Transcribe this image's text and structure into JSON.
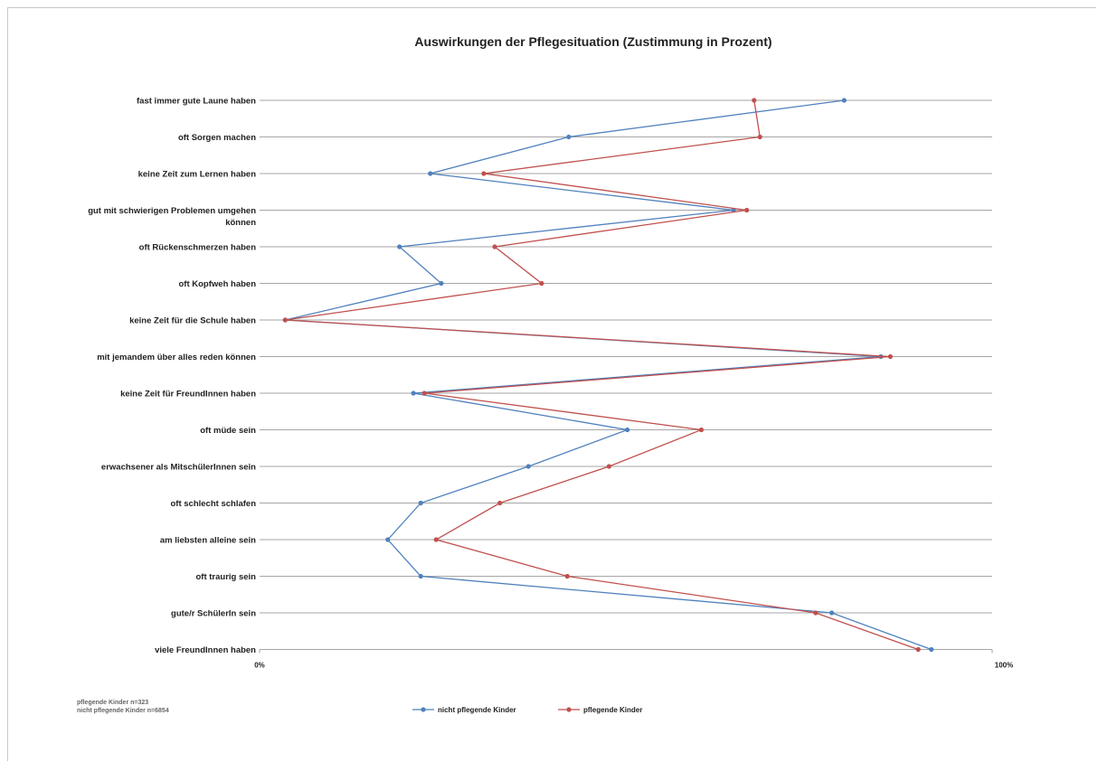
{
  "chart_data": {
    "type": "line",
    "title": "Auswirkungen der Pflegesituation (Zustimmung in Prozent)",
    "orientation": "horizontal",
    "categories": [
      "fast immer gute Laune haben",
      "oft Sorgen machen",
      "keine Zeit zum Lernen haben",
      "gut mit schwierigen Problemen umgehen können",
      "oft Rückenschmerzen haben",
      "oft Kopfweh haben",
      "keine Zeit für die Schule haben",
      "mit jemandem über alles reden können",
      "keine Zeit für FreundInnen haben",
      "oft müde sein",
      "erwachsener als MitschülerInnen sein",
      "oft schlecht schlafen",
      "am liebsten alleine sein",
      "oft traurig sein",
      "gute/r SchülerIn sein",
      "viele FreundInnen haben"
    ],
    "category_label_lines": [
      [
        "fast immer gute Laune haben"
      ],
      [
        "oft Sorgen machen"
      ],
      [
        "keine Zeit zum Lernen haben"
      ],
      [
        "gut mit schwierigen Problemen umgehen",
        "können"
      ],
      [
        "oft Rückenschmerzen haben"
      ],
      [
        "oft Kopfweh haben"
      ],
      [
        "keine Zeit für die Schule haben"
      ],
      [
        "mit jemandem über alles reden können"
      ],
      [
        "keine Zeit für FreundInnen haben"
      ],
      [
        "oft müde sein"
      ],
      [
        "erwachsener als MitschülerInnen sein"
      ],
      [
        "oft schlecht schlafen"
      ],
      [
        "am liebsten alleine sein"
      ],
      [
        "oft traurig sein"
      ],
      [
        "gute/r SchülerIn sein"
      ],
      [
        "viele FreundInnen haben"
      ]
    ],
    "series": [
      {
        "name": "nicht pflegende Kinder",
        "color": "#4f81bd",
        "values": [
          79.8,
          42.2,
          23.3,
          64.7,
          19.1,
          24.8,
          3.5,
          84.8,
          21.0,
          50.2,
          36.7,
          22.0,
          17.5,
          22.0,
          78.1,
          91.7
        ]
      },
      {
        "name": "pflegende Kinder",
        "color": "#c0504d",
        "values": [
          67.5,
          68.3,
          30.6,
          66.5,
          32.1,
          38.5,
          3.5,
          86.1,
          22.5,
          60.3,
          47.7,
          32.8,
          24.1,
          42.0,
          75.9,
          89.9
        ]
      }
    ],
    "xlim": [
      0,
      100
    ],
    "x_tick_labels": [
      "0%",
      "100%"
    ],
    "grid": true,
    "legend_position": "bottom"
  },
  "notes": [
    "pflegende Kinder n=323",
    "nicht pflegende Kinder n=6854"
  ]
}
